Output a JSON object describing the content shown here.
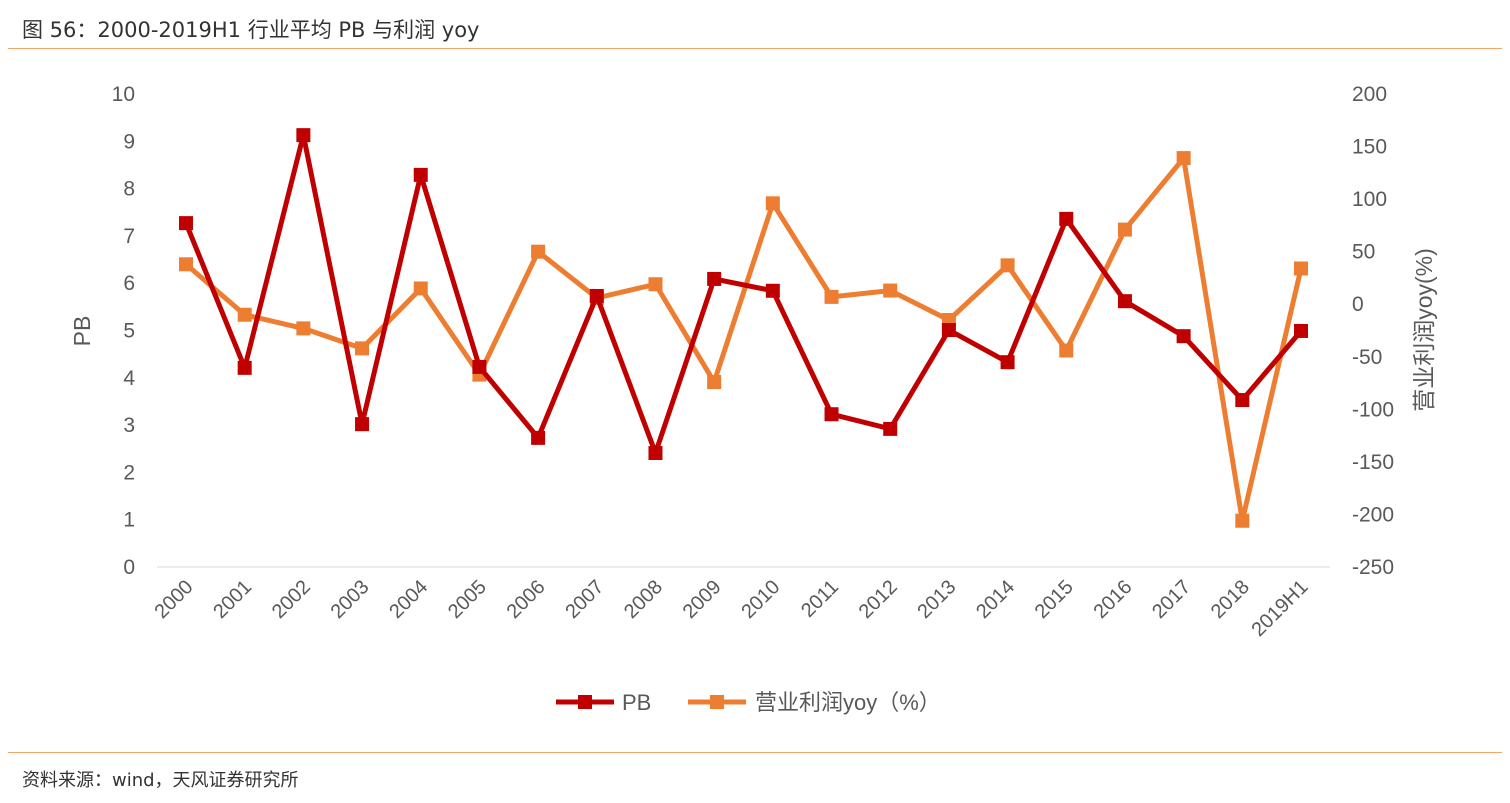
{
  "title": "图 56：2000-2019H1 行业平均 PB 与利润 yoy",
  "source": "资料来源：wind，天风证券研究所",
  "chart_data": {
    "type": "line",
    "categories": [
      "2000",
      "2001",
      "2002",
      "2003",
      "2004",
      "2005",
      "2006",
      "2007",
      "2008",
      "2009",
      "2010",
      "2011",
      "2012",
      "2013",
      "2014",
      "2015",
      "2016",
      "2017",
      "2018",
      "2019H1"
    ],
    "series": [
      {
        "name": "PB",
        "axis": "left",
        "color": "#C00000",
        "values": [
          7.27,
          4.21,
          9.13,
          3.02,
          8.29,
          4.23,
          2.73,
          5.73,
          2.41,
          6.09,
          5.84,
          3.23,
          2.92,
          5.01,
          4.33,
          7.36,
          5.62,
          4.88,
          3.53,
          4.99
        ]
      },
      {
        "name": "营业利润yoy（%）",
        "axis": "right",
        "color": "#ED7D31",
        "values": [
          38,
          -10,
          -23,
          -42,
          15,
          -67,
          50,
          6,
          19,
          -74,
          96,
          7,
          13,
          -15,
          37,
          -44,
          71,
          139,
          -206,
          34
        ]
      }
    ],
    "ylabel": "PB",
    "ylabel_right": "营业利润yoy(%)",
    "ylim": [
      0,
      10
    ],
    "yticks": [
      "0",
      "1",
      "2",
      "3",
      "4",
      "5",
      "6",
      "7",
      "8",
      "9",
      "10"
    ],
    "ylim_right": [
      -250,
      200
    ],
    "yticks_right": [
      "-250",
      "-200",
      "-150",
      "-100",
      "-50",
      "0",
      "50",
      "100",
      "150",
      "200"
    ],
    "grid": false,
    "legend": "bottom"
  }
}
